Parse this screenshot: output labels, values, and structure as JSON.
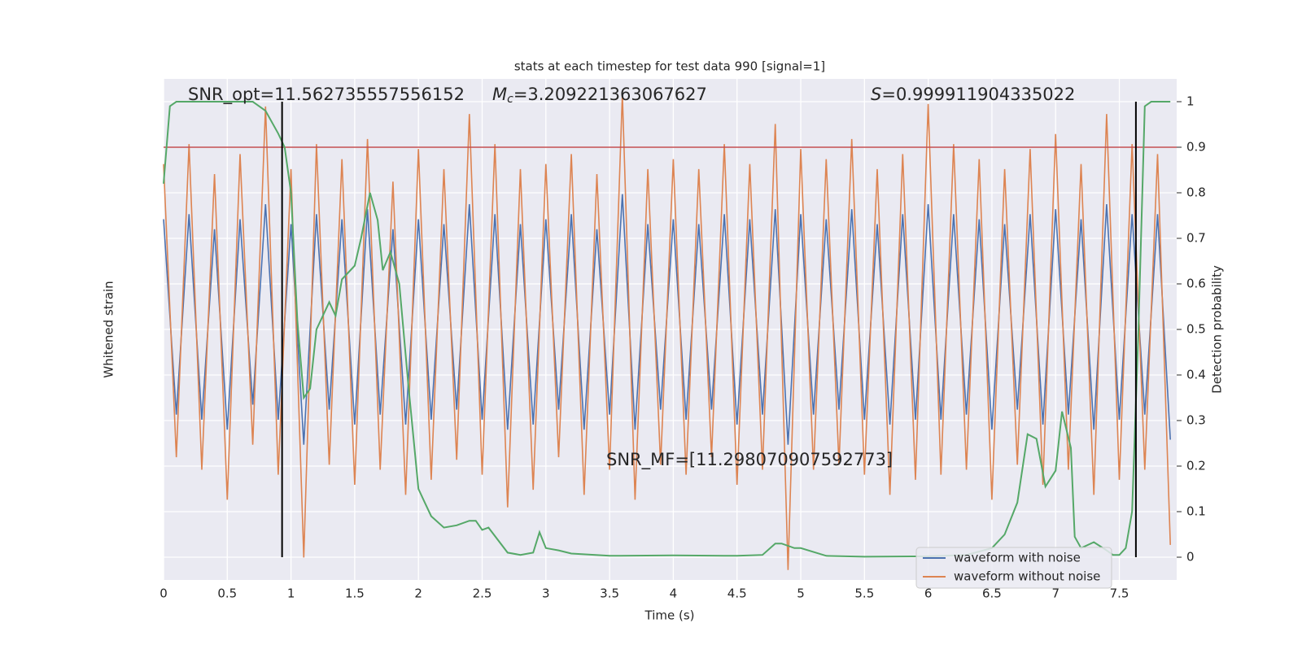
{
  "chart_data": {
    "type": "line",
    "title": "stats at each timestep for test data 990 [signal=1]",
    "xlabel": "Time (s)",
    "ylabel": "Whitened strain",
    "y2label": "Detection probability",
    "xlim": [
      0,
      7.95
    ],
    "xticks": [
      0.0,
      0.5,
      1.0,
      1.5,
      2.0,
      2.5,
      3.0,
      3.5,
      4.0,
      4.5,
      5.0,
      5.5,
      6.0,
      6.5,
      7.0,
      7.5
    ],
    "ylim": [
      -1.04,
      0.96
    ],
    "y2lim": [
      -0.05,
      1.05
    ],
    "y2ticks": [
      0.0,
      0.1,
      0.2,
      0.3,
      0.4,
      0.5,
      0.6,
      0.7,
      0.8,
      0.9,
      1.0
    ],
    "grid": true,
    "legend": "lower right",
    "x": [
      0,
      0.1,
      0.2,
      0.3,
      0.4,
      0.5,
      0.6,
      0.7,
      0.8,
      0.9,
      1,
      1.1,
      1.2,
      1.3,
      1.4,
      1.5,
      1.6,
      1.7,
      1.8,
      1.9,
      2,
      2.1,
      2.2,
      2.3,
      2.4,
      2.5,
      2.6,
      2.7,
      2.8,
      2.9,
      3,
      3.1,
      3.2,
      3.3,
      3.4,
      3.5,
      3.6,
      3.7,
      3.8,
      3.9,
      4,
      4.1,
      4.2,
      4.3,
      4.4,
      4.5,
      4.6,
      4.7,
      4.8,
      4.9,
      5,
      5.1,
      5.2,
      5.3,
      5.4,
      5.5,
      5.6,
      5.7,
      5.8,
      5.9,
      6,
      6.1,
      6.2,
      6.3,
      6.4,
      6.5,
      6.6,
      6.7,
      6.8,
      6.9,
      7,
      7.1,
      7.2,
      7.3,
      7.4,
      7.5,
      7.6,
      7.7,
      7.8,
      7.9
    ],
    "series": [
      {
        "name": "waveform with noise",
        "color": "#4c72b0",
        "values": [
          0.4,
          -0.38,
          0.42,
          -0.4,
          0.36,
          -0.44,
          0.4,
          -0.34,
          0.46,
          -0.4,
          0.38,
          -0.5,
          0.42,
          -0.36,
          0.4,
          -0.42,
          0.44,
          -0.38,
          0.36,
          -0.42,
          0.4,
          -0.4,
          0.38,
          -0.36,
          0.46,
          -0.4,
          0.42,
          -0.44,
          0.38,
          -0.42,
          0.4,
          -0.36,
          0.42,
          -0.44,
          0.36,
          -0.38,
          0.5,
          -0.44,
          0.38,
          -0.36,
          0.4,
          -0.4,
          0.38,
          -0.36,
          0.42,
          -0.42,
          0.4,
          -0.38,
          0.44,
          -0.5,
          0.42,
          -0.38,
          0.4,
          -0.36,
          0.44,
          -0.4,
          0.38,
          -0.42,
          0.42,
          -0.4,
          0.46,
          -0.4,
          0.42,
          -0.38,
          0.4,
          -0.44,
          0.38,
          -0.36,
          0.42,
          -0.42,
          0.44,
          -0.38,
          0.4,
          -0.44,
          0.46,
          -0.4,
          0.42,
          -0.38,
          0.42,
          -0.48
        ]
      },
      {
        "name": "waveform without noise",
        "color": "#dd8452",
        "values": [
          0.62,
          -0.55,
          0.7,
          -0.6,
          0.58,
          -0.72,
          0.66,
          -0.5,
          0.85,
          -0.62,
          0.6,
          -0.95,
          0.7,
          -0.58,
          0.64,
          -0.66,
          0.72,
          -0.6,
          0.55,
          -0.7,
          0.68,
          -0.64,
          0.6,
          -0.56,
          0.82,
          -0.62,
          0.7,
          -0.75,
          0.6,
          -0.68,
          0.62,
          -0.55,
          0.66,
          -0.7,
          0.58,
          -0.6,
          0.9,
          -0.72,
          0.6,
          -0.58,
          0.64,
          -0.62,
          0.6,
          -0.55,
          0.7,
          -0.66,
          0.62,
          -0.6,
          0.78,
          -1.0,
          0.68,
          -0.6,
          0.64,
          -0.58,
          0.72,
          -0.62,
          0.6,
          -0.7,
          0.66,
          -0.64,
          0.86,
          -0.62,
          0.7,
          -0.6,
          0.64,
          -0.72,
          0.6,
          -0.58,
          0.68,
          -0.66,
          0.74,
          -0.6,
          0.62,
          -0.7,
          0.82,
          -0.64,
          0.7,
          -0.6,
          0.66,
          -0.9
        ]
      }
    ],
    "probability": {
      "color": "#55a868",
      "x": [
        0,
        0.05,
        0.1,
        0.3,
        0.5,
        0.7,
        0.8,
        0.9,
        0.95,
        1.0,
        1.05,
        1.1,
        1.15,
        1.2,
        1.3,
        1.35,
        1.4,
        1.5,
        1.55,
        1.62,
        1.68,
        1.72,
        1.78,
        1.85,
        1.92,
        2.0,
        2.05,
        2.1,
        2.2,
        2.3,
        2.4,
        2.45,
        2.5,
        2.55,
        2.7,
        2.8,
        2.9,
        2.95,
        3.0,
        3.1,
        3.2,
        3.5,
        4.0,
        4.5,
        4.7,
        4.8,
        4.85,
        4.95,
        5.0,
        5.2,
        5.5,
        6.0,
        6.3,
        6.5,
        6.6,
        6.7,
        6.78,
        6.85,
        6.92,
        7.0,
        7.05,
        7.12,
        7.15,
        7.2,
        7.3,
        7.4,
        7.45,
        7.5,
        7.55,
        7.6,
        7.65,
        7.7,
        7.75,
        7.9
      ],
      "values": [
        0.82,
        0.99,
        1.0,
        1.0,
        1.0,
        1.0,
        0.98,
        0.93,
        0.9,
        0.8,
        0.52,
        0.35,
        0.37,
        0.5,
        0.56,
        0.53,
        0.61,
        0.64,
        0.7,
        0.8,
        0.74,
        0.63,
        0.67,
        0.6,
        0.38,
        0.15,
        0.12,
        0.09,
        0.065,
        0.07,
        0.08,
        0.08,
        0.06,
        0.065,
        0.01,
        0.005,
        0.01,
        0.055,
        0.02,
        0.015,
        0.008,
        0.003,
        0.004,
        0.003,
        0.005,
        0.03,
        0.03,
        0.02,
        0.02,
        0.003,
        0.001,
        0.002,
        0.005,
        0.02,
        0.05,
        0.12,
        0.27,
        0.26,
        0.155,
        0.19,
        0.32,
        0.24,
        0.045,
        0.02,
        0.033,
        0.015,
        0.005,
        0.005,
        0.02,
        0.1,
        0.5,
        0.99,
        1.0,
        1.0
      ]
    },
    "threshold": 0.9,
    "threshold_color": "#c44e52",
    "vlines": [
      0.93,
      7.63
    ],
    "annotations": {
      "snr_opt": "SNR_opt=11.562735557556152",
      "mc": {
        "symbol": "M",
        "sub": "c",
        "rest": "=3.209221363067627"
      },
      "s": {
        "symbol": "S",
        "rest": "=0.999911904335022"
      },
      "snr_mf": "SNR_MF=[11.298070907592773]"
    }
  }
}
